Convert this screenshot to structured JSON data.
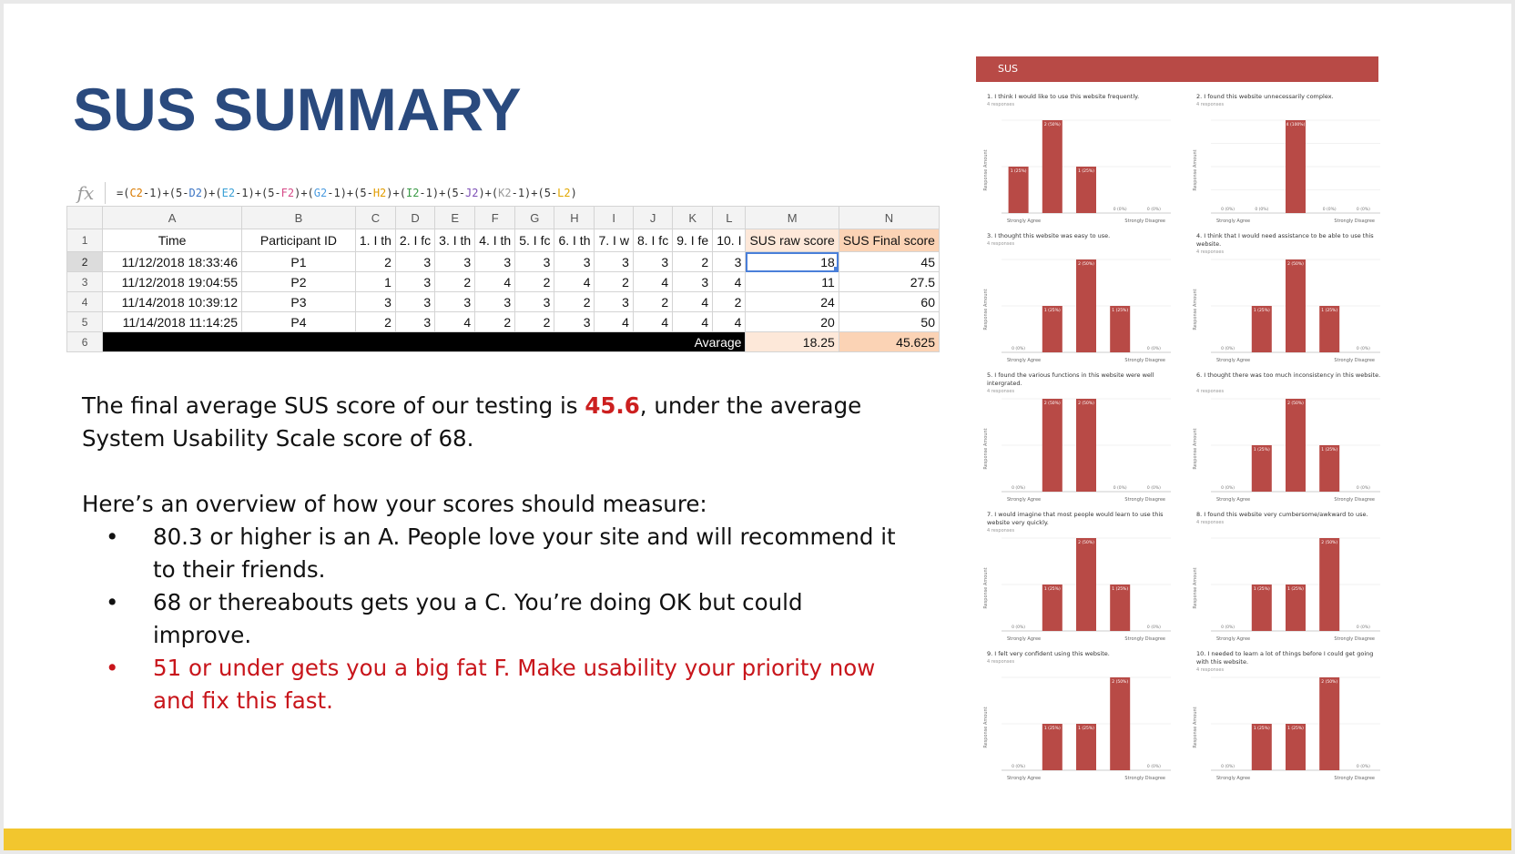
{
  "slide": {
    "title": "SUS SUMMARY"
  },
  "sheet": {
    "formula_icon": "fx",
    "formula_parts": [
      {
        "t": "=(",
        "c": ""
      },
      {
        "t": "C2",
        "c": "tok-c"
      },
      {
        "t": "-1)+(5-",
        "c": ""
      },
      {
        "t": "D2",
        "c": "tok-d"
      },
      {
        "t": ")+(",
        "c": ""
      },
      {
        "t": "E2",
        "c": "tok-e"
      },
      {
        "t": "-1)+(5-",
        "c": ""
      },
      {
        "t": "F2",
        "c": "tok-f"
      },
      {
        "t": ")+(",
        "c": ""
      },
      {
        "t": "G2",
        "c": "tok-g"
      },
      {
        "t": "-1)+(5-",
        "c": ""
      },
      {
        "t": "H2",
        "c": "tok-h"
      },
      {
        "t": ")+(",
        "c": ""
      },
      {
        "t": "I2",
        "c": "tok-i"
      },
      {
        "t": "-1)+(5-",
        "c": ""
      },
      {
        "t": "J2",
        "c": "tok-j"
      },
      {
        "t": ")+(",
        "c": ""
      },
      {
        "t": "K2",
        "c": "tok-k"
      },
      {
        "t": "-1)+(5-",
        "c": ""
      },
      {
        "t": "L2",
        "c": "tok-l"
      },
      {
        "t": ")",
        "c": ""
      }
    ],
    "columns": [
      "A",
      "B",
      "C",
      "D",
      "E",
      "F",
      "G",
      "H",
      "I",
      "J",
      "K",
      "L",
      "M",
      "N"
    ],
    "row_numbers": [
      "1",
      "2",
      "3",
      "4",
      "5",
      "6"
    ],
    "headers": [
      "Time",
      "Participant ID",
      "1. I th",
      "2. I fc",
      "3. I th",
      "4. I th",
      "5. I fc",
      "6. I th",
      "7. I w",
      "8. I fc",
      "9. I fe",
      "10. I",
      "SUS raw score",
      "SUS Final score"
    ],
    "rows": [
      [
        "11/12/2018 18:33:46",
        "P1",
        "2",
        "3",
        "3",
        "3",
        "3",
        "3",
        "3",
        "3",
        "2",
        "3",
        "18",
        "45"
      ],
      [
        "11/12/2018 19:04:55",
        "P2",
        "1",
        "3",
        "2",
        "4",
        "2",
        "4",
        "2",
        "4",
        "3",
        "4",
        "11",
        "27.5"
      ],
      [
        "11/14/2018 10:39:12",
        "P3",
        "3",
        "3",
        "3",
        "3",
        "3",
        "2",
        "3",
        "2",
        "4",
        "2",
        "24",
        "60"
      ],
      [
        "11/14/2018 11:14:25",
        "P4",
        "2",
        "3",
        "4",
        "2",
        "2",
        "3",
        "4",
        "4",
        "4",
        "4",
        "20",
        "50"
      ]
    ],
    "average_label": "Avarage",
    "average_raw": "18.25",
    "average_final": "45.625"
  },
  "body": {
    "line1_pre": "The final average SUS score of our testing is ",
    "line1_score": "45.6",
    "line1_post": ", under the average System Usability Scale score of 68.",
    "overview": "Here’s an overview of how your scores should measure:",
    "grades": [
      {
        "text": "80.3 or higher is an A. People love your site and will recommend it to their friends.",
        "red": false
      },
      {
        "text": "68 or thereabouts gets you a C. You’re doing OK but could improve.",
        "red": false
      },
      {
        "text": "51 or under gets you a big fat F. Make usability your priority now and fix this fast.",
        "red": true
      }
    ],
    "bullet": "•"
  },
  "report": {
    "header": "SUS",
    "bar_color": "#b84a46",
    "y_label": "Response Amount",
    "left_label": "Strongly Agree",
    "right_label": "Strongly Disagree",
    "charts": [
      {
        "q": "1. I think I would like to use this website frequently.",
        "resp": "4 responses",
        "values": [
          1,
          2,
          1,
          0,
          0
        ],
        "labels": [
          "1 (25%)",
          "2 (50%)",
          "1 (25%)",
          "0 (0%)",
          "0 (0%)"
        ]
      },
      {
        "q": "2. I found this website unnecessarily complex.",
        "resp": "4 responses",
        "values": [
          0,
          0,
          4,
          0,
          0
        ],
        "labels": [
          "0 (0%)",
          "0 (0%)",
          "4 (100%)",
          "0 (0%)",
          "0 (0%)"
        ]
      },
      {
        "q": "3. I thought this website was easy to use.",
        "resp": "4 responses",
        "values": [
          0,
          1,
          2,
          1,
          0
        ],
        "labels": [
          "0 (0%)",
          "1 (25%)",
          "2 (50%)",
          "1 (25%)",
          "0 (0%)"
        ]
      },
      {
        "q": "4. I think that I would need assistance to be able to use this website.",
        "resp": "4 responses",
        "values": [
          0,
          1,
          2,
          1,
          0
        ],
        "labels": [
          "0 (0%)",
          "1 (25%)",
          "2 (50%)",
          "1 (25%)",
          "0 (0%)"
        ]
      },
      {
        "q": "5. I found the various functions in this website were well intergrated.",
        "resp": "4 responses",
        "values": [
          0,
          2,
          2,
          0,
          0
        ],
        "labels": [
          "0 (0%)",
          "2 (50%)",
          "2 (50%)",
          "0 (0%)",
          "0 (0%)"
        ]
      },
      {
        "q": "6. I thought there was too much inconsistency in this website.",
        "resp": "4 responses",
        "values": [
          0,
          1,
          2,
          1,
          0
        ],
        "labels": [
          "0 (0%)",
          "1 (25%)",
          "2 (50%)",
          "1 (25%)",
          "0 (0%)"
        ]
      },
      {
        "q": "7. I would imagine that most people would learn to use this website very quickly.",
        "resp": "4 responses",
        "values": [
          0,
          1,
          2,
          1,
          0
        ],
        "labels": [
          "0 (0%)",
          "1 (25%)",
          "2 (50%)",
          "1 (25%)",
          "0 (0%)"
        ]
      },
      {
        "q": "8. I found this website very cumbersome/awkward to use.",
        "resp": "4 responses",
        "values": [
          0,
          1,
          1,
          2,
          0
        ],
        "labels": [
          "0 (0%)",
          "1 (25%)",
          "1 (25%)",
          "2 (50%)",
          "0 (0%)"
        ]
      },
      {
        "q": "9. I felt very confident using this website.",
        "resp": "4 responses",
        "values": [
          0,
          1,
          1,
          2,
          0
        ],
        "labels": [
          "0 (0%)",
          "1 (25%)",
          "1 (25%)",
          "2 (50%)",
          "0 (0%)"
        ]
      },
      {
        "q": "10. I needed to learn a lot of things before I could get going with this website.",
        "resp": "4 responses",
        "values": [
          0,
          1,
          1,
          2,
          0
        ],
        "labels": [
          "0 (0%)",
          "1 (25%)",
          "1 (25%)",
          "2 (50%)",
          "0 (0%)"
        ]
      }
    ]
  }
}
